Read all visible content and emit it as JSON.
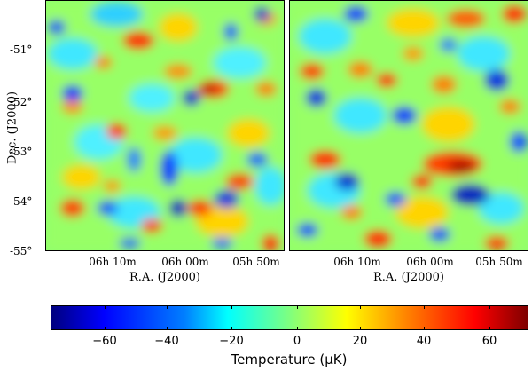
{
  "figure": {
    "ylabel": "Dec. (J2000)",
    "yticks": [
      "-51°",
      "-52°",
      "-53°",
      "-54°",
      "-55°"
    ],
    "xticks": [
      "06h 10m",
      "06h 00m",
      "05h 50m"
    ],
    "xlabel_left": "R.A. (J2000)",
    "xlabel_right": "R.A. (J2000)",
    "colormap": "jet",
    "colors": {
      "background": "#ffffff",
      "frame": "#000000",
      "map_base": "#7fff7f"
    },
    "colorbar": {
      "range": [
        -78,
        72
      ],
      "ticks": [
        "−60",
        "−40",
        "−20",
        "0",
        "20",
        "40",
        "60"
      ],
      "label": "Temperature (μK)"
    }
  }
}
